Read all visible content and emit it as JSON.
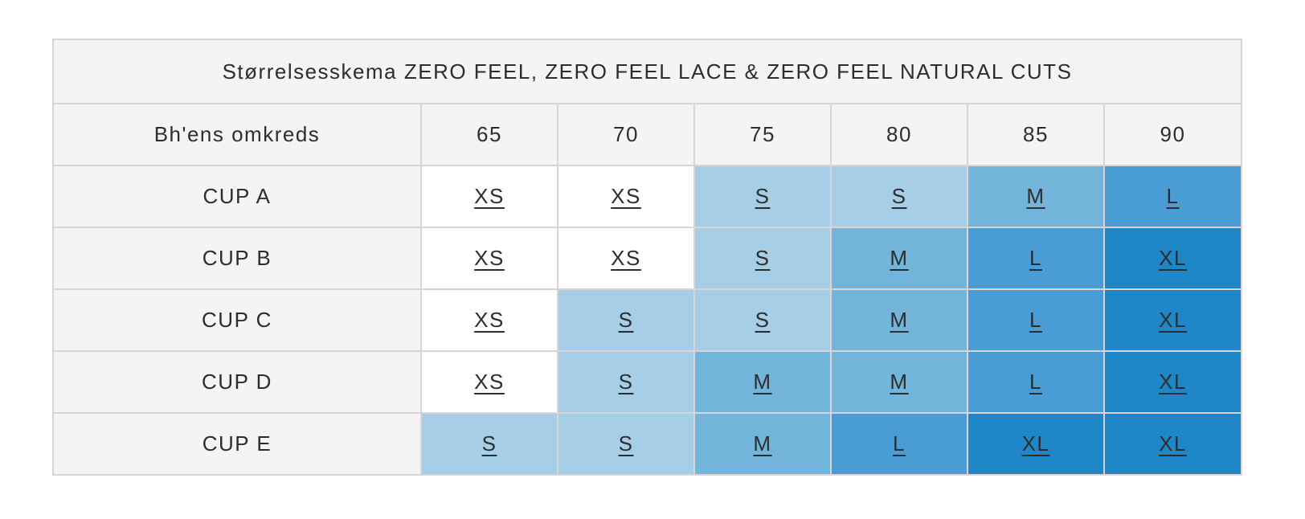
{
  "table": {
    "title": "Størrelsesskema ZERO FEEL, ZERO FEEL LACE & ZERO FEEL NATURAL CUTS",
    "header": {
      "label": "Bh'ens omkreds",
      "columns": [
        "65",
        "70",
        "75",
        "80",
        "85",
        "90"
      ]
    },
    "rows": [
      {
        "label": "CUP A",
        "sizes": [
          "XS",
          "XS",
          "S",
          "S",
          "M",
          "L"
        ]
      },
      {
        "label": "CUP B",
        "sizes": [
          "XS",
          "XS",
          "S",
          "M",
          "L",
          "XL"
        ]
      },
      {
        "label": "CUP C",
        "sizes": [
          "XS",
          "S",
          "S",
          "M",
          "L",
          "XL"
        ]
      },
      {
        "label": "CUP D",
        "sizes": [
          "XS",
          "S",
          "M",
          "M",
          "L",
          "XL"
        ]
      },
      {
        "label": "CUP E",
        "sizes": [
          "S",
          "S",
          "M",
          "L",
          "XL",
          "XL"
        ]
      }
    ]
  },
  "colors": {
    "size_background": {
      "XS": "#ffffff",
      "S": "#a6cfe7",
      "M": "#73b4db",
      "L": "#4a9cd4",
      "XL": "#1f86c8"
    },
    "header_background": "#f5f4f4",
    "border": "#d9d5d6",
    "text": "#2d2d2d",
    "page_background": "#ffffff"
  }
}
